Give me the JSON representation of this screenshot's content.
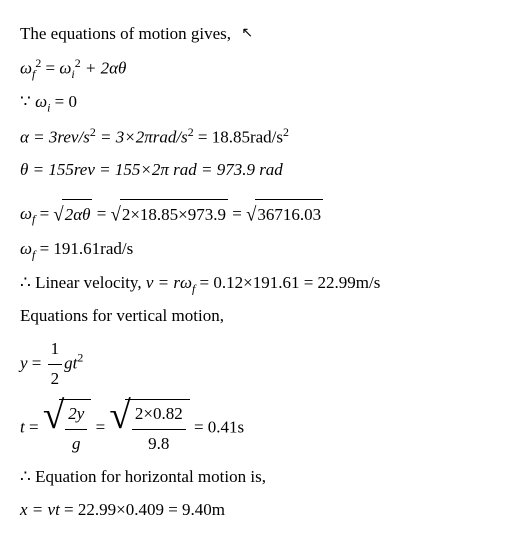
{
  "lines": {
    "l1_a": "The equations of motion gives,",
    "l2_eq": "ω",
    "l2_sub1": "f",
    "l2_sup1": "2",
    "l2_mid": " = ",
    "l2_om2": "ω",
    "l2_sub2": "i",
    "l2_sup2": "2",
    "l2_tail": " + 2αθ",
    "l3_a": "∵ ",
    "l3_om": "ω",
    "l3_sub": "i",
    "l3_b": " = 0",
    "l4": "α = 3rev/s",
    "l4_s1": "2",
    "l4_b": " = 3×2πrad/s",
    "l4_s2": "2",
    "l4_c": " = 18.85rad/s",
    "l4_s3": "2",
    "l5": "θ = 155rev = 155×2π rad = 973.9 rad",
    "l6_om": "ω",
    "l6_sub": "f",
    "l6_a": " = ",
    "l6_sqrt1": "2αθ",
    "l6_b": " = ",
    "l6_sqrt2": "2×18.85×973.9",
    "l6_c": " = ",
    "l6_sqrt3": "36716.03",
    "l7_om": "ω",
    "l7_sub": "f",
    "l7_a": " = 191.61rad/s",
    "l8_a": "∴ Linear velocity, ",
    "l8_v": "v = rω",
    "l8_sub": "f",
    "l8_b": " = 0.12×191.61 = 22.99m/s",
    "l9": "Equations for vertical motion,",
    "l10_y": "y",
    "l10_eq": " = ",
    "l10_num": "1",
    "l10_den": "2",
    "l10_gt": "gt",
    "l10_sup": "2",
    "l11_t": "t",
    "l11_eq": " = ",
    "l11_num1": "2y",
    "l11_den1": "g",
    "l11_mid": " = ",
    "l11_num2": "2×0.82",
    "l11_den2": "9.8",
    "l11_tail": " = 0.41s",
    "l12": "∴ Equation for horizontal motion is,",
    "l13_a": "x = vt",
    "l13_b": " = 22.99×0.409 = 9.40m"
  },
  "colors": {
    "text": "#000000",
    "bg": "#ffffff"
  },
  "font": {
    "family": "Times New Roman",
    "size_pt": 13
  }
}
